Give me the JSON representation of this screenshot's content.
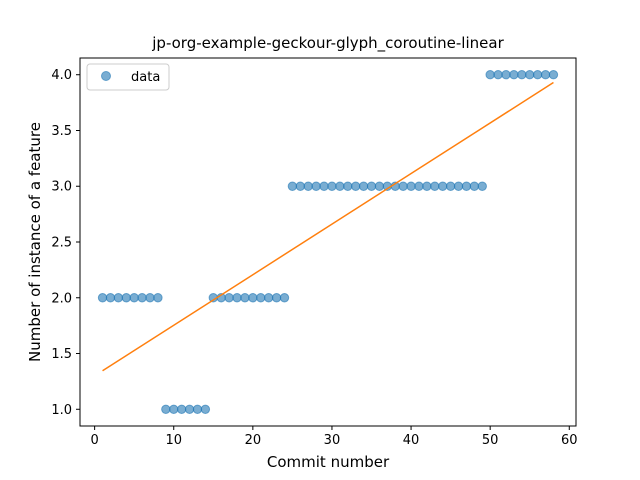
{
  "chart_data": {
    "type": "scatter",
    "title": "jp-org-example-geckour-glyph_coroutine-linear",
    "xlabel": "Commit number",
    "ylabel": "Number of instance of a feature",
    "xlim": [
      -1.85,
      60.85
    ],
    "ylim": [
      0.85,
      4.15
    ],
    "xticks": [
      0,
      10,
      20,
      30,
      40,
      50,
      60
    ],
    "yticks": [
      1.0,
      1.5,
      2.0,
      2.5,
      3.0,
      3.5,
      4.0
    ],
    "grid": false,
    "legend": {
      "placement": "top-left",
      "entries": [
        "data"
      ]
    },
    "series": [
      {
        "name": "data",
        "kind": "scatter",
        "color": "#1f77b4",
        "x": [
          1,
          2,
          3,
          4,
          5,
          6,
          7,
          8,
          9,
          10,
          11,
          12,
          13,
          14,
          15,
          16,
          17,
          18,
          19,
          20,
          21,
          22,
          23,
          24,
          25,
          26,
          27,
          28,
          29,
          30,
          31,
          32,
          33,
          34,
          35,
          36,
          37,
          38,
          39,
          40,
          41,
          42,
          43,
          44,
          45,
          46,
          47,
          48,
          49,
          50,
          51,
          52,
          53,
          54,
          55,
          56,
          57,
          58
        ],
        "y": [
          2,
          2,
          2,
          2,
          2,
          2,
          2,
          2,
          1,
          1,
          1,
          1,
          1,
          1,
          2,
          2,
          2,
          2,
          2,
          2,
          2,
          2,
          2,
          2,
          3,
          3,
          3,
          3,
          3,
          3,
          3,
          3,
          3,
          3,
          3,
          3,
          3,
          3,
          3,
          3,
          3,
          3,
          3,
          3,
          3,
          3,
          3,
          3,
          3,
          4,
          4,
          4,
          4,
          4,
          4,
          4,
          4,
          4
        ]
      },
      {
        "kind": "line",
        "color": "#ff7f0e",
        "x": [
          1,
          58
        ],
        "y": [
          1.345,
          3.93
        ]
      }
    ]
  }
}
